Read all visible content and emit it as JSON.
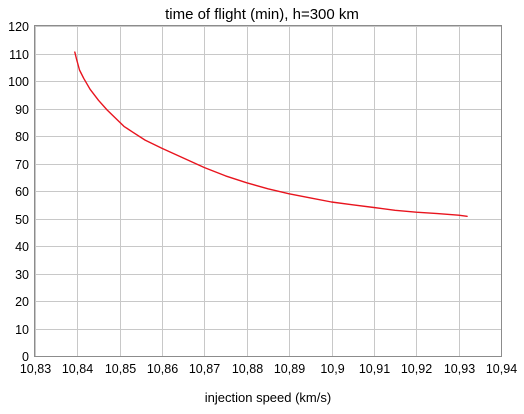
{
  "chart_data": {
    "type": "line",
    "title": "time of flight (min), h=300 km",
    "xlabel": "injection speed (km/s)",
    "ylabel": "",
    "xlim": [
      10.83,
      10.94
    ],
    "ylim": [
      0,
      120
    ],
    "x_ticks": [
      "10,83",
      "10,84",
      "10,85",
      "10,86",
      "10,87",
      "10,88",
      "10,89",
      "10,9",
      "10,91",
      "10,92",
      "10,93",
      "10,94"
    ],
    "y_ticks": [
      "0",
      "10",
      "20",
      "30",
      "40",
      "50",
      "60",
      "70",
      "80",
      "90",
      "100",
      "110",
      "120"
    ],
    "grid": true,
    "legend": "none",
    "series": [
      {
        "color": "#e8141e",
        "x": [
          10.8394,
          10.8398,
          10.8405,
          10.8415,
          10.843,
          10.845,
          10.847,
          10.849,
          10.851,
          10.853,
          10.856,
          10.86,
          10.865,
          10.87,
          10.875,
          10.88,
          10.885,
          10.89,
          10.895,
          10.9,
          10.905,
          10.91,
          10.915,
          10.92,
          10.925,
          10.93,
          10.932
        ],
        "y": [
          110.5,
          108,
          104,
          101,
          97,
          93,
          89.5,
          86.5,
          83.5,
          81.5,
          78.5,
          75.5,
          72,
          68.5,
          65.5,
          63,
          60.8,
          59,
          57.5,
          56,
          55,
          54,
          53,
          52.3,
          51.8,
          51.2,
          50.8
        ]
      }
    ]
  }
}
